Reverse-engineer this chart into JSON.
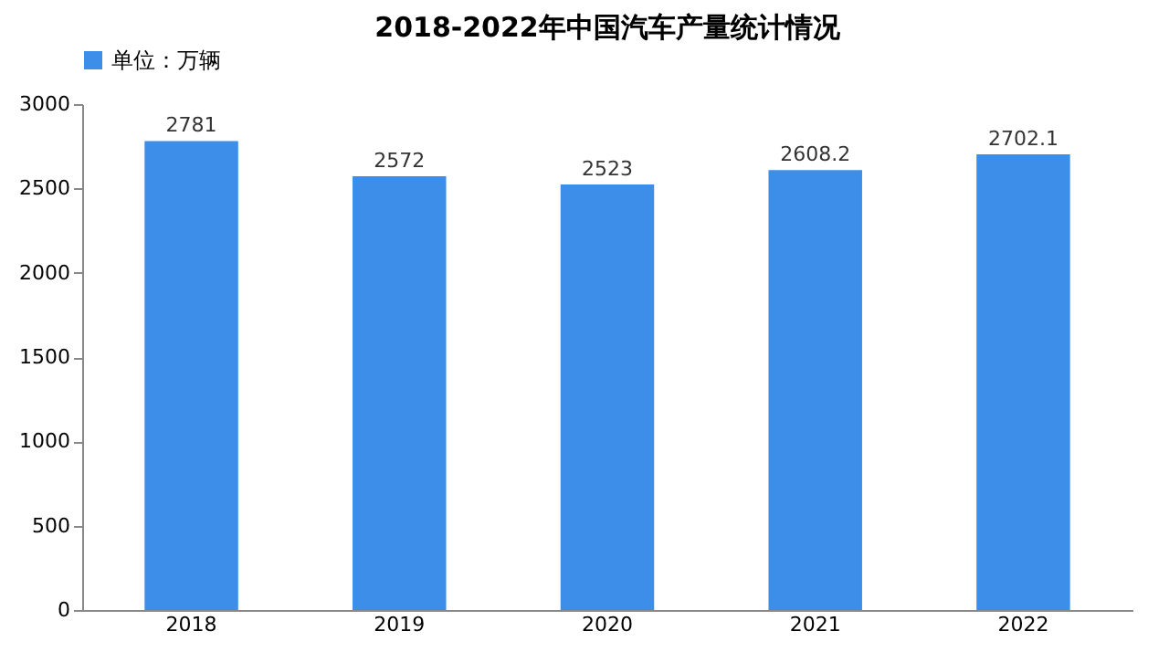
{
  "chart_data": {
    "type": "bar",
    "title": "2018-2022年中国汽车产量统计情况",
    "categories": [
      "2018",
      "2019",
      "2020",
      "2021",
      "2022"
    ],
    "series": [
      {
        "name": "单位：万辆",
        "color": "#3c8ee8",
        "values": [
          2781,
          2572,
          2523,
          2608.2,
          2702.1
        ]
      }
    ],
    "ylim": [
      0,
      3000
    ],
    "yticks": [
      0,
      500,
      1000,
      1500,
      2000,
      2500,
      3000
    ],
    "data_labels": true,
    "legend": "top",
    "grid": false
  }
}
